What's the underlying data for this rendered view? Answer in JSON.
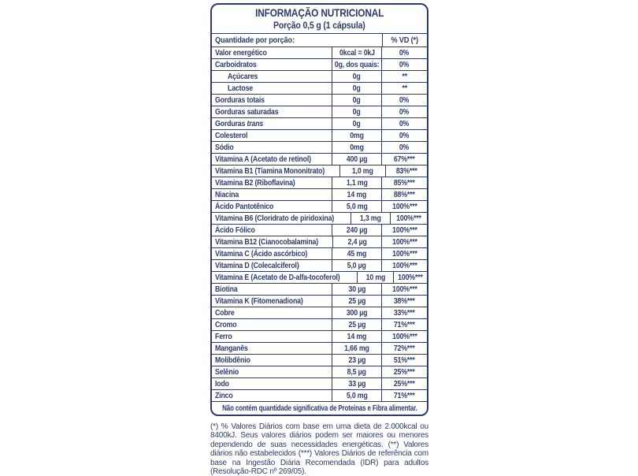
{
  "colors": {
    "navy": "#2F3B68",
    "background": "#FFFFFF"
  },
  "header": {
    "title": "INFORMAÇÃO NUTRICIONAL",
    "subtitle": "Porção 0,5 g (1 cápsula)"
  },
  "table": {
    "quantity_header": "Quantidade por porção:",
    "dv_header": "% VD (*)",
    "rows": [
      {
        "name": "Valor energético",
        "amount": "0kcal = 0kJ",
        "dv": "0%",
        "indent": false
      },
      {
        "name": "Carboidratos",
        "amount": "0g, dos quais:",
        "dv": "0%",
        "indent": false
      },
      {
        "name": "Açúcares",
        "amount": "0g",
        "dv": "**",
        "indent": true
      },
      {
        "name": "Lactose",
        "amount": "0g",
        "dv": "**",
        "indent": true
      },
      {
        "name": "Gorduras totais",
        "amount": "0g",
        "dv": "0%",
        "indent": false
      },
      {
        "name": "Gorduras saturadas",
        "amount": "0g",
        "dv": "0%",
        "indent": false
      },
      {
        "name": "Gorduras",
        "italic": "trans",
        "amount": "0g",
        "dv": "0%",
        "indent": false
      },
      {
        "name": "Colesterol",
        "amount": "0mg",
        "dv": "0%",
        "indent": false
      },
      {
        "name": "Sódio",
        "amount": "0mg",
        "dv": "0%",
        "indent": false
      },
      {
        "name": "Vitamina A (Acetato de retinol)",
        "amount": "400 µg",
        "dv": "67%***",
        "indent": false
      },
      {
        "name": "Vitamina B1 (Tiamina Mononitrato)",
        "amount": "1,0 mg",
        "dv": "83%***",
        "indent": false
      },
      {
        "name": "Vitamina B2 (Riboflavina)",
        "amount": "1,1 mg",
        "dv": "85%***",
        "indent": false
      },
      {
        "name": "Niacina",
        "amount": "14 mg",
        "dv": "88%***",
        "indent": false
      },
      {
        "name": "Ácido Pantotênico",
        "amount": "5,0 mg",
        "dv": "100%***",
        "indent": false
      },
      {
        "name": "Vitamina B6 (Cloridrato de piridoxina)",
        "amount": "1,3 mg",
        "dv": "100%***",
        "indent": false
      },
      {
        "name": "Ácido Fólico",
        "amount": "240 µg",
        "dv": "100%***",
        "indent": false
      },
      {
        "name": "Vitamina B12 (Cianocobalamina)",
        "amount": "2,4 µg",
        "dv": "100%***",
        "indent": false
      },
      {
        "name": "Vitamina C (Ácido ascórbico)",
        "amount": "45 mg",
        "dv": "100%***",
        "indent": false
      },
      {
        "name": "Vitamina D (Colecalciferol)",
        "amount": "5,0 µg",
        "dv": "100%***",
        "indent": false
      },
      {
        "name": "Vitamina E (Acetato de D-alfa-tocoferol)",
        "amount": "10 mg",
        "dv": "100%***",
        "indent": false
      },
      {
        "name": "Biotina",
        "amount": "30 µg",
        "dv": "100%***",
        "indent": false
      },
      {
        "name": "Vitamina K (Fitomenadiona)",
        "amount": "25 µg",
        "dv": "38%***",
        "indent": false
      },
      {
        "name": "Cobre",
        "amount": "300 µg",
        "dv": "33%***",
        "indent": false
      },
      {
        "name": "Cromo",
        "amount": "25 µg",
        "dv": "71%***",
        "indent": false
      },
      {
        "name": "Ferro",
        "amount": "14 mg",
        "dv": "100%***",
        "indent": false
      },
      {
        "name": "Manganês",
        "amount": "1,66 mg",
        "dv": "72%***",
        "indent": false
      },
      {
        "name": "Molibdênio",
        "amount": "23 µg",
        "dv": "51%***",
        "indent": false
      },
      {
        "name": "Selênio",
        "amount": "8,5 µg",
        "dv": "25%***",
        "indent": false
      },
      {
        "name": "Iodo",
        "amount": "33 µg",
        "dv": "25%***",
        "indent": false
      },
      {
        "name": "Zinco",
        "amount": "5,0 mg",
        "dv": "71%***",
        "indent": false
      }
    ],
    "no_significant_note": "Não contém quantidade significativa de Proteínas e Fibra alimentar."
  },
  "footnote": "(*) % Valores Diários com base em uma dieta de 2.000kcal ou 8400kJ. Seus valores diários podem ser maiores ou menores dependendo de suas necessidades energéticas. (**) Valores diários não estabelecidos (***) Valores Diários de referência com base na Ingestão Diária Recomendada (IDR) para adultos (Resolução-RDC nº 269/05)."
}
